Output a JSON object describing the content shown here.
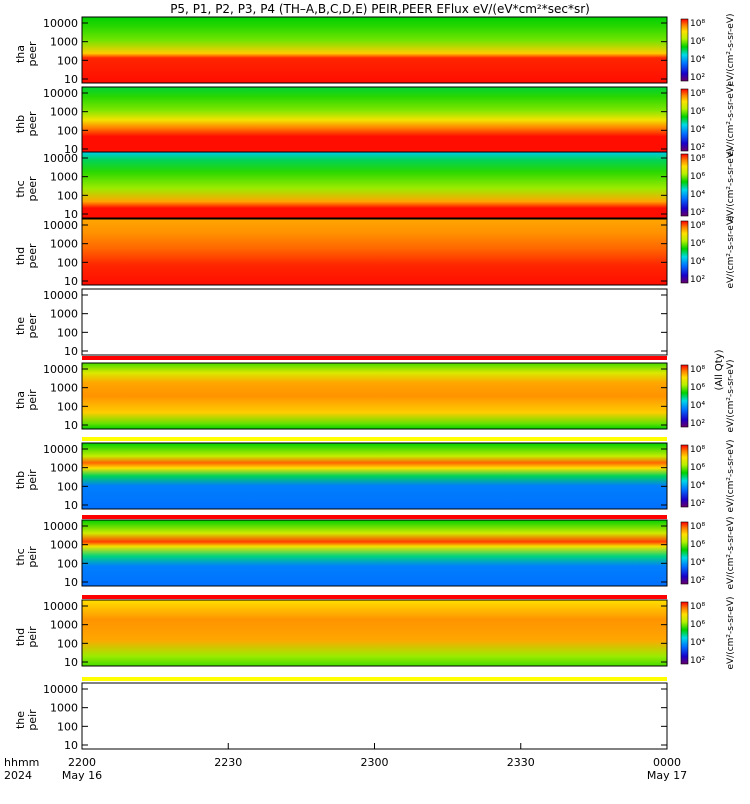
{
  "title": "P5, P1, P2, P3, P4 (TH–A,B,C,D,E) PEIR,PEER EFlux eV/(eV*cm²*sec*sr)",
  "unit_long": "(All Qty)",
  "chart_data": {
    "type": "heatmap",
    "title": "P5, P1, P2, P3, P4 (TH–A,B,C,D,E) PEIR,PEER EFlux eV/(eV*cm²*sec*sr)",
    "x_axis": {
      "label_line1": "hhmm",
      "label_line2": "2024",
      "ticks": [
        "2200",
        "2230",
        "2300",
        "2330",
        "0000"
      ],
      "sub_ticks": [
        "May 16",
        "",
        "",
        "",
        "May 17"
      ],
      "range": [
        "2024-05-16 22:00",
        "2024-05-17 00:00"
      ]
    },
    "y_axis": {
      "scale": "log",
      "range": [
        5,
        20000
      ],
      "ticks": [
        "10",
        "100",
        "1000",
        "10000"
      ]
    },
    "colorbar": {
      "scale": "log",
      "tick_labels": [
        "10²",
        "10⁴",
        "10⁶",
        "10⁸"
      ]
    },
    "panels": [
      {
        "probe": "tha",
        "species": "peer",
        "has_data": true,
        "colorbar_label": "eV/(cm²-s-sr-eV)"
      },
      {
        "probe": "thb",
        "species": "peer",
        "has_data": true,
        "colorbar_label": "eV/(cm²-s-sr-eV)"
      },
      {
        "probe": "thc",
        "species": "peer",
        "has_data": true,
        "colorbar_label": "eV/(cm²-s-sr-eV)"
      },
      {
        "probe": "thd",
        "species": "peer",
        "has_data": true,
        "colorbar_label": "eV/(cm²-s-sr-eV)"
      },
      {
        "probe": "the",
        "species": "peer",
        "has_data": false,
        "colorbar_label": ""
      },
      {
        "probe": "tha",
        "species": "peir",
        "has_data": true,
        "colorbar_label": "eV/(cm²-s-sr-eV)"
      },
      {
        "probe": "thb",
        "species": "peir",
        "has_data": true,
        "colorbar_label": "eV/(cm²-s-sr-eV)"
      },
      {
        "probe": "thc",
        "species": "peir",
        "has_data": true,
        "colorbar_label": "eV/(cm²-s-sr-eV)"
      },
      {
        "probe": "thd",
        "species": "peir",
        "has_data": true,
        "colorbar_label": "eV/(cm²-s-sr-eV)"
      },
      {
        "probe": "the",
        "species": "peir",
        "has_data": false,
        "colorbar_label": ""
      }
    ]
  }
}
